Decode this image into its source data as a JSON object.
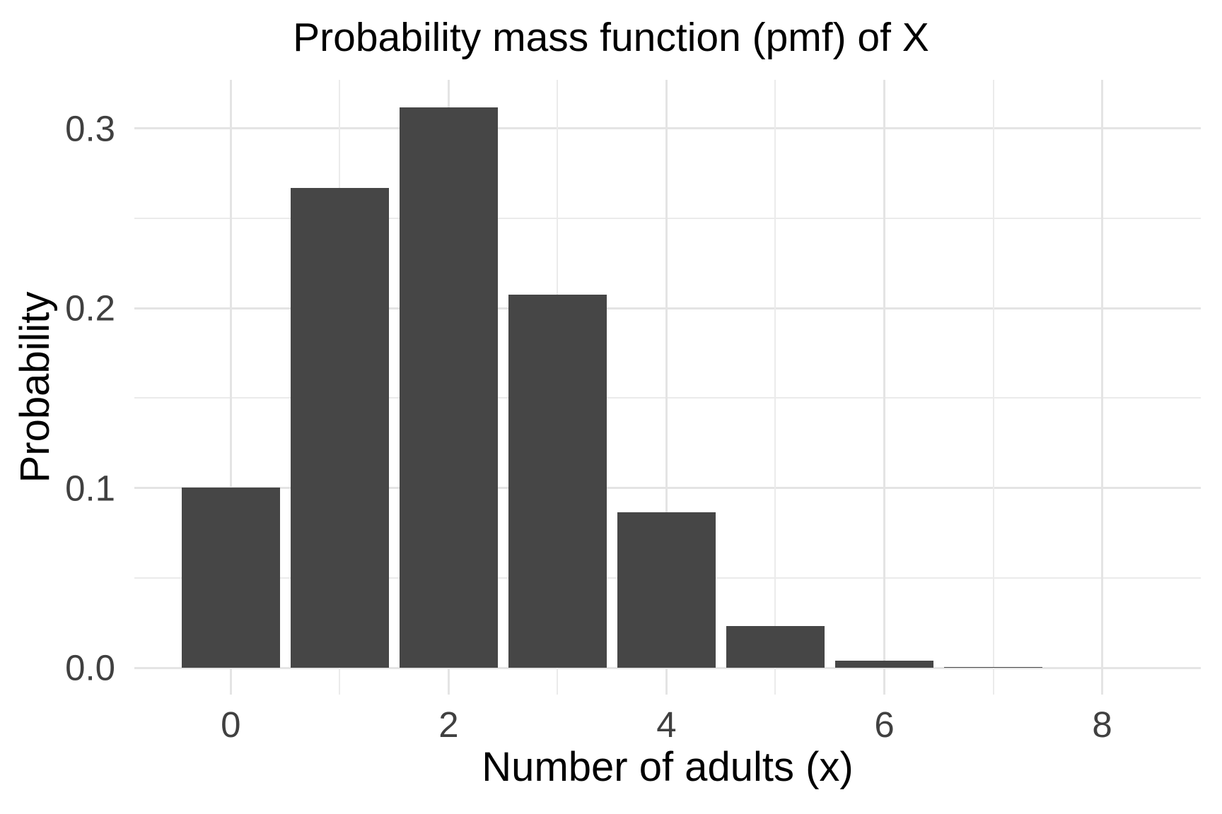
{
  "chart_data": {
    "type": "bar",
    "title": "Probability mass function (pmf) of X",
    "xlabel": "Number of adults (x)",
    "ylabel": "Probability",
    "x": [
      0,
      1,
      2,
      3,
      4,
      5,
      6,
      7,
      8
    ],
    "values": [
      0.1001,
      0.267,
      0.3115,
      0.2076,
      0.0865,
      0.0231,
      0.0038,
      0.0004,
      0.0
    ],
    "bar_width": 0.9,
    "xlim": [
      -0.885,
      8.905
    ],
    "ylim": [
      -0.0149,
      0.327
    ],
    "x_major_breaks": [
      0,
      2,
      4,
      6,
      8
    ],
    "x_minor_breaks": [
      1,
      3,
      5,
      7
    ],
    "x_tick_labels": [
      "0",
      "2",
      "4",
      "6",
      "8"
    ],
    "y_major_breaks": [
      0.0,
      0.1,
      0.2,
      0.3
    ],
    "y_minor_breaks": [
      0.05,
      0.15,
      0.25
    ],
    "y_tick_labels": [
      "0.0",
      "0.1",
      "0.2",
      "0.3"
    ],
    "grid": "major-and-minor",
    "legend": "none"
  },
  "colors": {
    "background": "#FFFFFF",
    "bar_fill": "#464646",
    "grid_major": "#E4E4E4",
    "grid_minor": "#EBEBEB",
    "axis_text": "#404040",
    "title_text": "#000000"
  }
}
